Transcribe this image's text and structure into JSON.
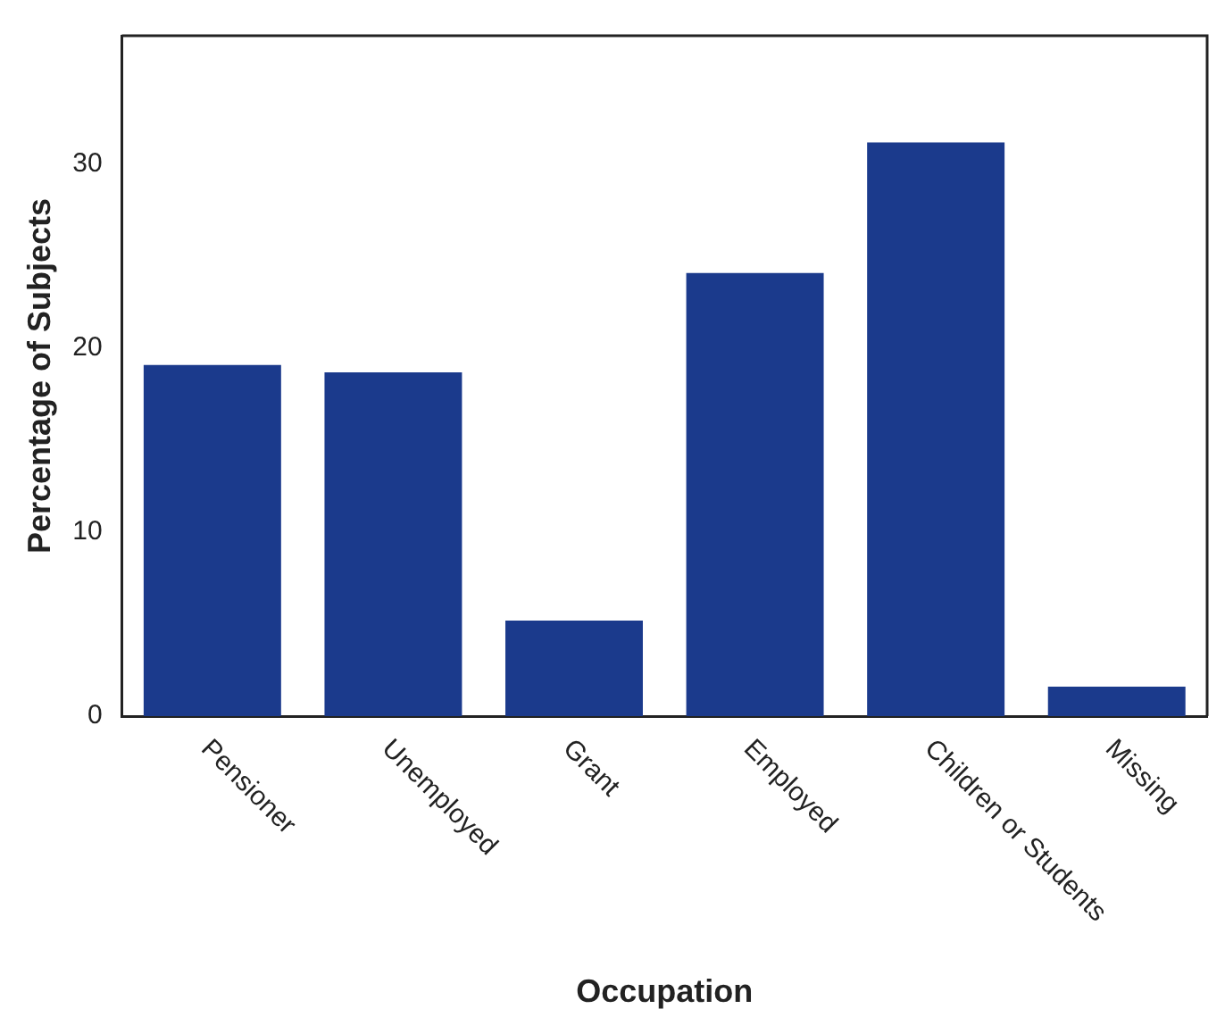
{
  "chart_data": {
    "type": "bar",
    "xlabel": "Occupation",
    "ylabel": "Percentage of Subjects",
    "categories": [
      "Pensioner",
      "Unemployed",
      "Grant",
      "Employed",
      "Children or Students",
      "Missing"
    ],
    "values": [
      19.1,
      18.7,
      5.2,
      24.1,
      31.2,
      1.6
    ],
    "color": "#1b3a8c",
    "ylim": [
      0,
      37
    ],
    "yticks": [
      0,
      10,
      20,
      30
    ],
    "grid": false,
    "legend": false
  }
}
